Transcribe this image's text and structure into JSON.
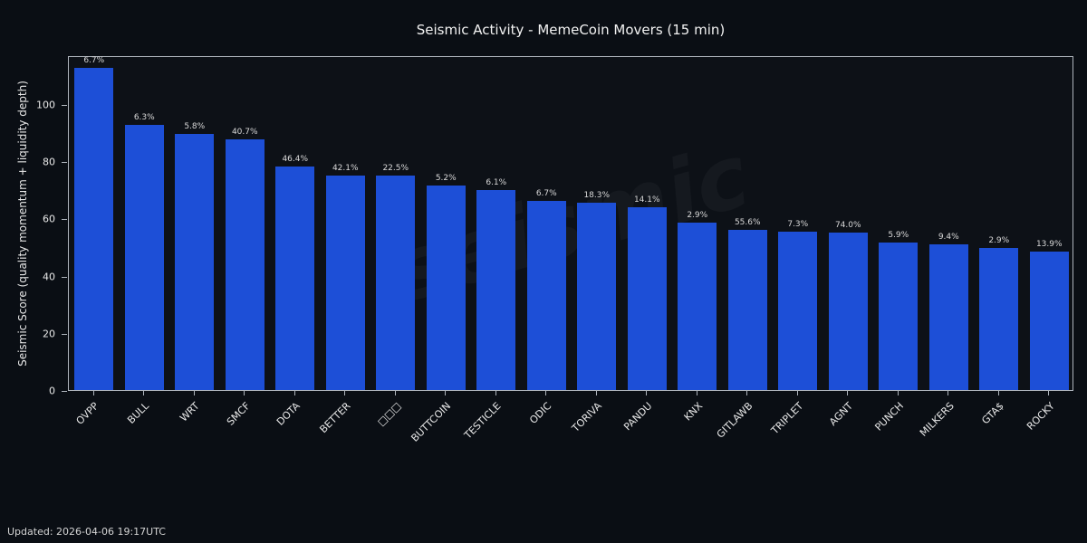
{
  "chart_data": {
    "type": "bar",
    "title": "Seismic Activity - MemeCoin Movers (15 min)",
    "xlabel": "",
    "ylabel": "Seismic Score (quality momentum + liquidity depth)",
    "categories": [
      "OVPP",
      "BULL",
      "WRT",
      "SMCF",
      "DOTA",
      "BETTER",
      "□□□",
      "BUTTCOIN",
      "TESTICLE",
      "ODIC",
      "TORIVA",
      "PANDU",
      "KNX",
      "GITLAWB",
      "TRIPLET",
      "AGNT",
      "PUNCH",
      "MILKERS",
      "GTA$",
      "ROCKY"
    ],
    "values": [
      112.5,
      92.5,
      89.5,
      87.5,
      78,
      75,
      74.8,
      71.5,
      70,
      66,
      65.5,
      64,
      58.5,
      56,
      55.5,
      55,
      51.5,
      51,
      49.5,
      48.5
    ],
    "bar_labels": [
      "6.7%",
      "6.3%",
      "5.8%",
      "40.7%",
      "46.4%",
      "42.1%",
      "22.5%",
      "5.2%",
      "6.1%",
      "6.7%",
      "18.3%",
      "14.1%",
      "2.9%",
      "55.6%",
      "7.3%",
      "74.0%",
      "5.9%",
      "9.4%",
      "2.9%",
      "13.9%"
    ],
    "yticks": [
      0,
      20,
      40,
      60,
      80,
      100
    ],
    "ylim": [
      0,
      117
    ],
    "grid": false,
    "legend": "none",
    "bar_color": "#1d4fd7",
    "background": "#0a0e14",
    "plot_background": "#0d1117",
    "watermark": "seismic"
  },
  "footer": {
    "updated": "Updated: 2026-04-06 19:17UTC"
  }
}
